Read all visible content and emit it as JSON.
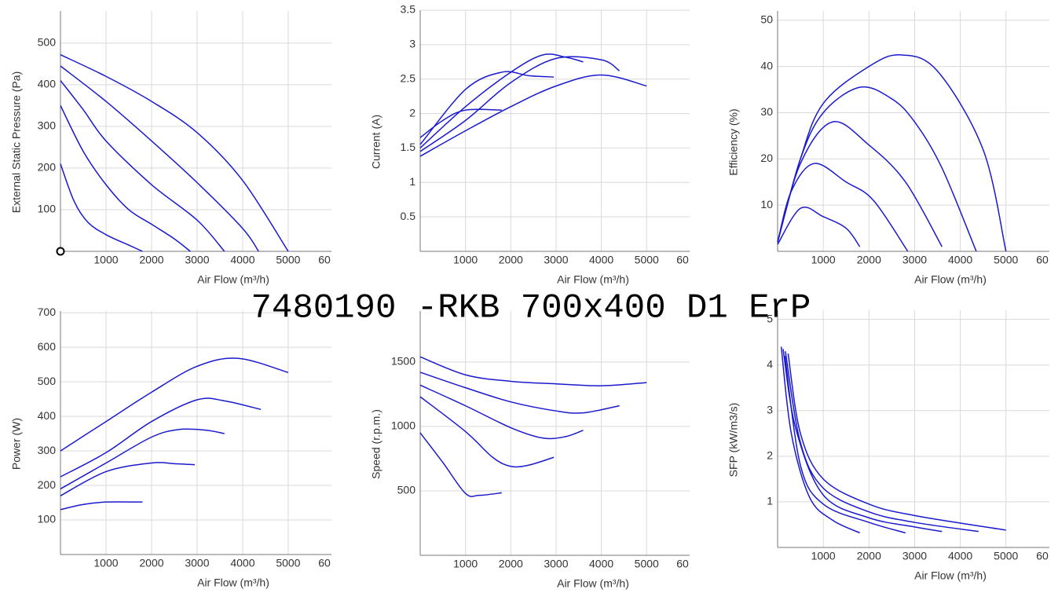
{
  "page_title": "7480190 -RKB 700x400 D1 ErP",
  "chart_data": [
    {
      "type": "line",
      "x_label": "Air Flow (m³/h)",
      "y_label": "External Static Pressure (Pa)",
      "xlim": [
        0,
        5950
      ],
      "ylim": [
        0,
        577
      ],
      "xticks": [
        1000,
        2000,
        3000,
        4000,
        5000,
        {
          "value": 6000,
          "label": "60"
        }
      ],
      "yticks": [
        100,
        200,
        300,
        400,
        500
      ],
      "grid": true,
      "series": [
        {
          "color": "#1a1acd",
          "x": [
            0,
            1000,
            2000,
            3000,
            4000,
            5000
          ],
          "values": [
            472,
            420,
            360,
            285,
            170,
            0
          ]
        },
        {
          "color": "#1a1acd",
          "x": [
            0,
            1000,
            2000,
            3000,
            4000,
            4350
          ],
          "values": [
            445,
            360,
            265,
            165,
            55,
            0
          ]
        },
        {
          "color": "#1a1acd",
          "x": [
            0,
            500,
            1000,
            2000,
            3000,
            3600
          ],
          "values": [
            410,
            340,
            265,
            160,
            75,
            0
          ]
        },
        {
          "color": "#1a1acd",
          "x": [
            0,
            500,
            1000,
            1500,
            2000,
            2500,
            2850
          ],
          "values": [
            350,
            240,
            160,
            100,
            65,
            30,
            0
          ]
        },
        {
          "color": "#1a1acd",
          "x": [
            0,
            300,
            600,
            1000,
            1500,
            1800
          ],
          "values": [
            210,
            120,
            70,
            40,
            15,
            0
          ]
        }
      ]
    },
    {
      "type": "line",
      "x_label": "Air Flow (m³/h)",
      "y_label": "Current (A)",
      "xlim": [
        0,
        5950
      ],
      "ylim": [
        0,
        3.5
      ],
      "xticks": [
        1000,
        2000,
        3000,
        4000,
        5000,
        {
          "value": 6000,
          "label": "60"
        }
      ],
      "yticks": [
        0.5,
        1,
        1.5,
        2,
        2.5,
        3,
        3.5
      ],
      "grid": true,
      "series": [
        {
          "color": "#1a1acd",
          "x": [
            0,
            1000,
            2000,
            3000,
            4000,
            5000
          ],
          "values": [
            1.38,
            1.75,
            2.1,
            2.4,
            2.56,
            2.4
          ]
        },
        {
          "color": "#1a1acd",
          "x": [
            0,
            1000,
            2000,
            3000,
            4000,
            4400
          ],
          "values": [
            1.45,
            1.9,
            2.45,
            2.8,
            2.78,
            2.62
          ]
        },
        {
          "color": "#1a1acd",
          "x": [
            0,
            1000,
            2000,
            2700,
            3200,
            3600
          ],
          "values": [
            1.5,
            2.1,
            2.6,
            2.85,
            2.82,
            2.75
          ]
        },
        {
          "color": "#1a1acd",
          "x": [
            0,
            1000,
            1800,
            2400,
            2950
          ],
          "values": [
            1.55,
            2.35,
            2.6,
            2.55,
            2.53
          ]
        },
        {
          "color": "#1a1acd",
          "x": [
            0,
            500,
            1000,
            1800
          ],
          "values": [
            1.65,
            1.9,
            2.05,
            2.05
          ]
        }
      ]
    },
    {
      "type": "line",
      "x_label": "Air Flow (m³/h)",
      "y_label": "Efficiency (%)",
      "xlim": [
        0,
        5950
      ],
      "ylim": [
        0,
        52
      ],
      "xticks": [
        1000,
        2000,
        3000,
        4000,
        5000,
        {
          "value": 6000,
          "label": "60"
        }
      ],
      "yticks": [
        10,
        20,
        30,
        40,
        50
      ],
      "grid": true,
      "series": [
        {
          "color": "#1a1acd",
          "x": [
            0,
            500,
            1000,
            2000,
            2700,
            3500,
            4500,
            5000
          ],
          "values": [
            2,
            20,
            32,
            40,
            42.5,
            39,
            22,
            0
          ]
        },
        {
          "color": "#1a1acd",
          "x": [
            0,
            500,
            1000,
            1800,
            2500,
            3000,
            3600,
            4350
          ],
          "values": [
            2,
            20,
            30,
            35.5,
            33,
            28,
            18,
            0
          ]
        },
        {
          "color": "#1a1acd",
          "x": [
            0,
            500,
            1200,
            2000,
            2800,
            3600
          ],
          "values": [
            2,
            19,
            28,
            23,
            15,
            1
          ]
        },
        {
          "color": "#1a1acd",
          "x": [
            0,
            300,
            800,
            1500,
            2100,
            2850
          ],
          "values": [
            2,
            13,
            19,
            15,
            11,
            0
          ]
        },
        {
          "color": "#1a1acd",
          "x": [
            0,
            500,
            1000,
            1500,
            1800
          ],
          "values": [
            1.5,
            9.3,
            7.5,
            5,
            1
          ]
        }
      ]
    },
    {
      "type": "line",
      "x_label": "Air Flow (m³/h)",
      "y_label": "Power (W)",
      "xlim": [
        0,
        5950
      ],
      "ylim": [
        0,
        705
      ],
      "xticks": [
        1000,
        2000,
        3000,
        4000,
        5000,
        {
          "value": 6000,
          "label": "60"
        }
      ],
      "yticks": [
        100,
        200,
        300,
        400,
        500,
        600,
        700
      ],
      "grid": true,
      "series": [
        {
          "color": "#1a1acd",
          "x": [
            0,
            1000,
            2000,
            3000,
            3900,
            5000
          ],
          "values": [
            300,
            385,
            470,
            545,
            568,
            527
          ]
        },
        {
          "color": "#1a1acd",
          "x": [
            0,
            1000,
            2000,
            3000,
            3600,
            4400
          ],
          "values": [
            225,
            295,
            385,
            448,
            445,
            420
          ]
        },
        {
          "color": "#1a1acd",
          "x": [
            0,
            1000,
            2000,
            2600,
            3200,
            3600
          ],
          "values": [
            190,
            265,
            340,
            362,
            360,
            350
          ]
        },
        {
          "color": "#1a1acd",
          "x": [
            0,
            1000,
            2000,
            2500,
            2950
          ],
          "values": [
            170,
            240,
            265,
            263,
            260
          ]
        },
        {
          "color": "#1a1acd",
          "x": [
            0,
            500,
            1000,
            1800
          ],
          "values": [
            130,
            145,
            152,
            152
          ]
        }
      ]
    },
    {
      "type": "line",
      "x_label": "Air Flow (m³/h)",
      "y_label": "Speed (r.p.m.)",
      "xlim": [
        0,
        5950
      ],
      "ylim": [
        0,
        1895
      ],
      "xticks": [
        1000,
        2000,
        3000,
        4000,
        5000,
        {
          "value": 6000,
          "label": "60"
        }
      ],
      "yticks": [
        500,
        1000,
        1500
      ],
      "grid": true,
      "series": [
        {
          "color": "#1a1acd",
          "x": [
            0,
            1000,
            2000,
            3000,
            4000,
            5000
          ],
          "values": [
            1540,
            1400,
            1350,
            1330,
            1315,
            1340
          ]
        },
        {
          "color": "#1a1acd",
          "x": [
            0,
            1000,
            2000,
            3000,
            3600,
            4400
          ],
          "values": [
            1420,
            1300,
            1190,
            1120,
            1105,
            1160
          ]
        },
        {
          "color": "#1a1acd",
          "x": [
            0,
            1000,
            2000,
            2700,
            3200,
            3600
          ],
          "values": [
            1320,
            1160,
            990,
            910,
            920,
            970
          ]
        },
        {
          "color": "#1a1acd",
          "x": [
            0,
            1000,
            1600,
            2000,
            2400,
            2950
          ],
          "values": [
            1230,
            960,
            760,
            690,
            700,
            760
          ]
        },
        {
          "color": "#1a1acd",
          "x": [
            0,
            500,
            1000,
            1300,
            1800
          ],
          "values": [
            950,
            720,
            480,
            465,
            485
          ]
        }
      ]
    },
    {
      "type": "line",
      "x_label": "Air Flow (m³/h)",
      "y_label": "SFP (kW/m3/s)",
      "xlim": [
        0,
        5950
      ],
      "ylim": [
        0,
        5.2
      ],
      "xticks": [
        1000,
        2000,
        3000,
        4000,
        5000,
        {
          "value": 6000,
          "label": "60"
        }
      ],
      "yticks": [
        1,
        2,
        3,
        4,
        5
      ],
      "grid": true,
      "series": [
        {
          "color": "#1a1acd",
          "x": [
            230,
            500,
            1000,
            2000,
            3000,
            5000
          ],
          "values": [
            4.25,
            2.5,
            1.5,
            0.95,
            0.7,
            0.38
          ]
        },
        {
          "color": "#1a1acd",
          "x": [
            170,
            500,
            1000,
            2000,
            3000,
            4400
          ],
          "values": [
            4.3,
            2.3,
            1.3,
            0.78,
            0.55,
            0.35
          ]
        },
        {
          "color": "#1a1acd",
          "x": [
            120,
            400,
            1000,
            2000,
            3000,
            3600
          ],
          "values": [
            4.35,
            2.6,
            1.15,
            0.65,
            0.45,
            0.35
          ]
        },
        {
          "color": "#1a1acd",
          "x": [
            160,
            500,
            1000,
            2000,
            2800
          ],
          "values": [
            4.2,
            1.8,
            0.95,
            0.55,
            0.32
          ]
        },
        {
          "color": "#1a1acd",
          "x": [
            80,
            300,
            700,
            1200,
            1800
          ],
          "values": [
            4.4,
            2.5,
            1.1,
            0.6,
            0.32
          ]
        }
      ]
    }
  ]
}
